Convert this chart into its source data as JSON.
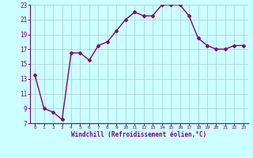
{
  "x": [
    0,
    1,
    2,
    3,
    4,
    5,
    6,
    7,
    8,
    9,
    10,
    11,
    12,
    13,
    14,
    15,
    16,
    17,
    18,
    19,
    20,
    21,
    22,
    23
  ],
  "y": [
    13.5,
    9.0,
    8.5,
    7.5,
    16.5,
    16.5,
    15.5,
    17.5,
    18.0,
    19.5,
    21.0,
    22.0,
    21.5,
    21.5,
    23.0,
    23.0,
    23.0,
    21.5,
    18.5,
    17.5,
    17.0,
    17.0,
    17.5,
    17.5
  ],
  "line_color": "#800080",
  "marker": "D",
  "marker_size": 2,
  "bg_color": "#ccffff",
  "grid_color": "#aacccc",
  "xlabel": "Windchill (Refroidissement éolien,°C)",
  "xlabel_color": "#800080",
  "tick_color": "#800080",
  "ylim": [
    7,
    23
  ],
  "yticks": [
    7,
    9,
    11,
    13,
    15,
    17,
    19,
    21,
    23
  ],
  "xlim": [
    -0.5,
    23.5
  ],
  "xticks": [
    0,
    1,
    2,
    3,
    4,
    5,
    6,
    7,
    8,
    9,
    10,
    11,
    12,
    13,
    14,
    15,
    16,
    17,
    18,
    19,
    20,
    21,
    22,
    23
  ]
}
